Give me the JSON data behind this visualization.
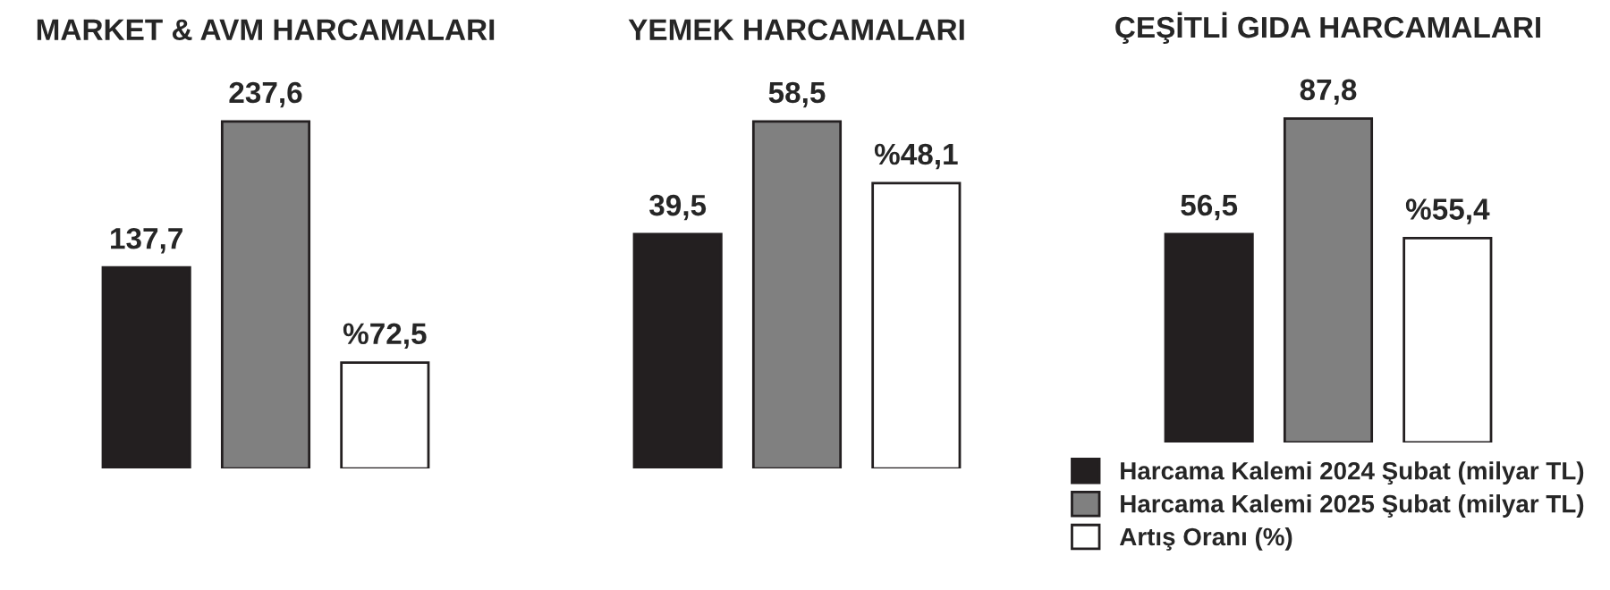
{
  "chart_data": [
    {
      "type": "bar",
      "title": "MARKET & AVM HARCAMALARI",
      "categories": [
        null
      ],
      "legend": false,
      "series": [
        {
          "color": "#231f20",
          "values": [
            137.7
          ],
          "value_labels": [
            "137,7"
          ]
        },
        {
          "color": "#808080",
          "values": [
            237.6
          ],
          "value_labels": [
            "237,6"
          ]
        },
        {
          "color": "#ffffff",
          "values": [
            72.5
          ],
          "value_labels": [
            "%72,5"
          ]
        }
      ]
    },
    {
      "type": "bar",
      "title": "YEMEK HARCAMALARI",
      "categories": [
        null
      ],
      "legend": false,
      "series": [
        {
          "color": "#231f20",
          "values": [
            39.5
          ],
          "value_labels": [
            "39,5"
          ]
        },
        {
          "color": "#808080",
          "values": [
            58.5
          ],
          "value_labels": [
            "58,5"
          ]
        },
        {
          "color": "#ffffff",
          "values": [
            48.1
          ],
          "value_labels": [
            "%48,1"
          ]
        }
      ]
    },
    {
      "type": "bar",
      "title": "ÇEŞİTLİ GIDA HARCAMALARI",
      "categories": [
        null
      ],
      "legend": "bottom",
      "series": [
        {
          "name": "Harcama Kalemi 2024 Şubat (milyar TL)",
          "color": "#231f20",
          "values": [
            56.5
          ],
          "value_labels": [
            "56,5"
          ]
        },
        {
          "name": "Harcama Kalemi 2025 Şubat (milyar TL)",
          "color": "#808080",
          "values": [
            87.8
          ],
          "value_labels": [
            "87,8"
          ]
        },
        {
          "name": "Artış Oranı (%)",
          "color": "#ffffff",
          "values": [
            55.4
          ],
          "value_labels": [
            "%55,4"
          ]
        }
      ]
    }
  ]
}
